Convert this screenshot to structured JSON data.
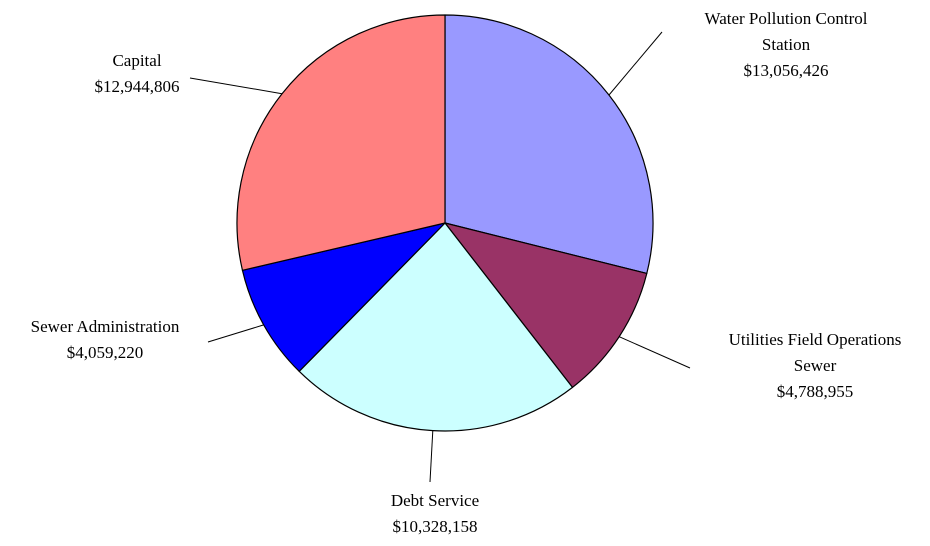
{
  "chart_data": {
    "type": "pie",
    "title": "",
    "categories": [
      "Water Pollution Control Station",
      "Utilities Field Operations Sewer",
      "Debt Service",
      "Sewer Administration",
      "Capital"
    ],
    "values": [
      13056426,
      4788955,
      10328158,
      4059220,
      12944806
    ],
    "value_labels": [
      "$13,056,426",
      "$4,788,955",
      "$10,328,158",
      "$4,059,220",
      "$12,944,806"
    ],
    "label_lines": [
      [
        "Water Pollution Control",
        "Station"
      ],
      [
        "Utilities Field Operations",
        "Sewer"
      ],
      [
        "Debt Service"
      ],
      [
        "Sewer Administration"
      ],
      [
        "Capital"
      ]
    ],
    "colors": [
      "#9999ff",
      "#993366",
      "#ccffff",
      "#0000ff",
      "#ff8080"
    ],
    "start_angle_deg": 0,
    "direction": "clockwise",
    "legend": "none"
  }
}
